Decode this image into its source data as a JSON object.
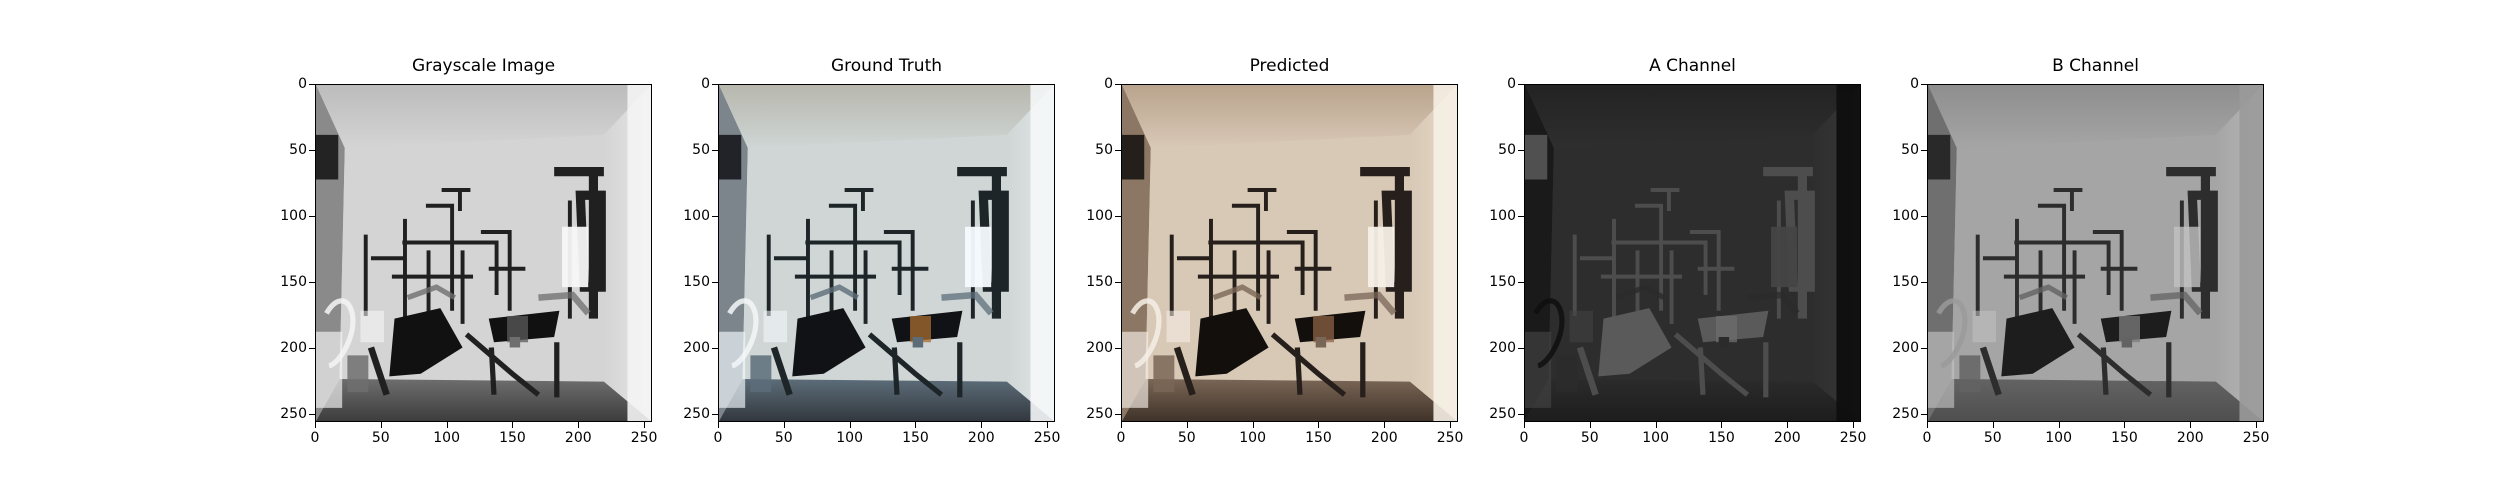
{
  "figure": {
    "panels": [
      {
        "id": "grayscale",
        "title": "Grayscale Image",
        "palette": "gray"
      },
      {
        "id": "ground-truth",
        "title": "Ground Truth",
        "palette": "color"
      },
      {
        "id": "predicted",
        "title": "Predicted",
        "palette": "warm"
      },
      {
        "id": "a-channel",
        "title": "A Channel",
        "palette": "dark"
      },
      {
        "id": "b-channel",
        "title": "B Channel",
        "palette": "mid"
      }
    ],
    "axes": {
      "x_ticks": [
        "0",
        "50",
        "100",
        "150",
        "200",
        "250"
      ],
      "y_ticks": [
        "0",
        "50",
        "100",
        "150",
        "200",
        "250"
      ],
      "x_values": [
        0,
        50,
        100,
        150,
        200,
        250
      ],
      "y_values": [
        0,
        50,
        100,
        150,
        200,
        250
      ],
      "xlim": [
        0,
        256
      ],
      "ylim": [
        256,
        0
      ]
    }
  }
}
